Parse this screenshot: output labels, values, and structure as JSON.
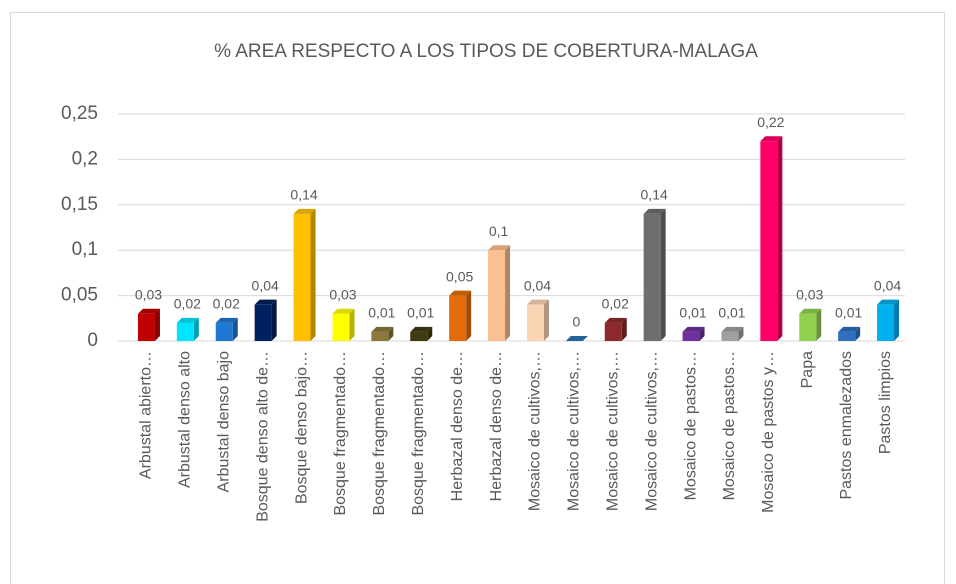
{
  "chart_data": {
    "type": "bar",
    "title": "% AREA RESPECTO A LOS TIPOS DE COBERTURA-MALAGA",
    "categories": [
      "Arbustal abierto…",
      "Arbustal denso alto",
      "Arbustal denso bajo",
      "Bosque denso alto de…",
      "Bosque denso bajo…",
      "Bosque fragmentado…",
      "Bosque fragmentado…",
      "Bosque fragmentado…",
      "Herbazal denso de…",
      "Herbazal denso de…",
      "Mosaico de cultivos,…",
      "Mosaico de cultivos,…",
      "Mosaico de cultivos,…",
      "Mosaico de cultivos,…",
      "Mosaico de pastos…",
      "Mosaico de pastos…",
      "Mosaico de pastos y…",
      "Papa",
      "Pastos enmalezados",
      "Pastos limpios"
    ],
    "values": [
      0.03,
      0.02,
      0.02,
      0.04,
      0.14,
      0.03,
      0.01,
      0.01,
      0.05,
      0.1,
      0.04,
      0,
      0.02,
      0.14,
      0.01,
      0.01,
      0.22,
      0.03,
      0.01,
      0.04
    ],
    "value_labels": [
      "0,03",
      "0,02",
      "0,02",
      "0,04",
      "0,14",
      "0,03",
      "0,01",
      "0,01",
      "0,05",
      "0,1",
      "0,04",
      "0",
      "0,02",
      "0,14",
      "0,01",
      "0,01",
      "0,22",
      "0,03",
      "0,01",
      "0,04"
    ],
    "colors": [
      "#c00000",
      "#00e5ff",
      "#1f78d1",
      "#002060",
      "#ffc000",
      "#ffff00",
      "#8c7a3c",
      "#403a10",
      "#e36c09",
      "#fac090",
      "#fbd4b4",
      "#2e75b6",
      "#8b2a2a",
      "#6e6e6e",
      "#7030a0",
      "#a0a0a0",
      "#ff0066",
      "#92d050",
      "#2e6fbf",
      "#00b0f0"
    ],
    "ylim": [
      0,
      0.25
    ],
    "yticks": [
      0,
      {
        "value": 0.05,
        "label": "0,05"
      },
      {
        "value": 0.1,
        "label": "0,1"
      },
      {
        "value": 0.15,
        "label": "0,15"
      },
      {
        "value": 0.2,
        "label": "0,2"
      },
      {
        "value": 0.25,
        "label": "0,25"
      }
    ],
    "grid": true
  }
}
